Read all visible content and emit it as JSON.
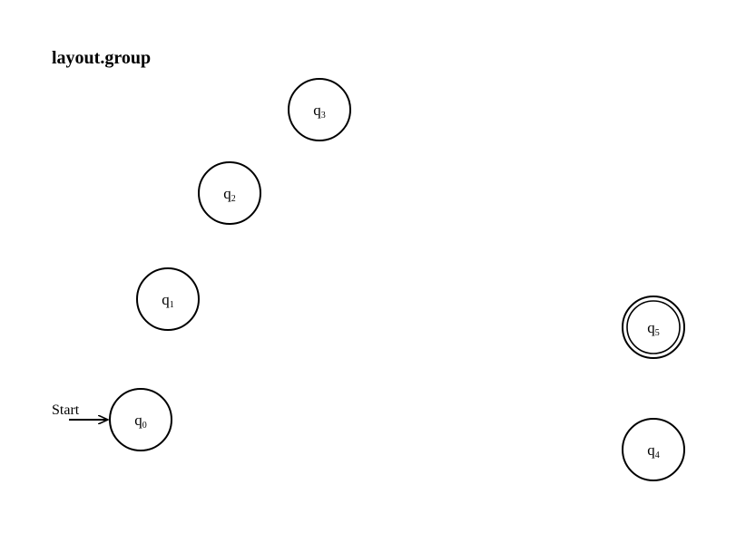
{
  "title": "layout.group",
  "start_label": "Start",
  "states": [
    {
      "id": "q0",
      "letter": "q",
      "index": "0",
      "accepting": false,
      "initial": true
    },
    {
      "id": "q1",
      "letter": "q",
      "index": "1",
      "accepting": false,
      "initial": false
    },
    {
      "id": "q2",
      "letter": "q",
      "index": "2",
      "accepting": false,
      "initial": false
    },
    {
      "id": "q3",
      "letter": "q",
      "index": "3",
      "accepting": false,
      "initial": false
    },
    {
      "id": "q4",
      "letter": "q",
      "index": "4",
      "accepting": false,
      "initial": false
    },
    {
      "id": "q5",
      "letter": "q",
      "index": "5",
      "accepting": true,
      "initial": false
    }
  ]
}
